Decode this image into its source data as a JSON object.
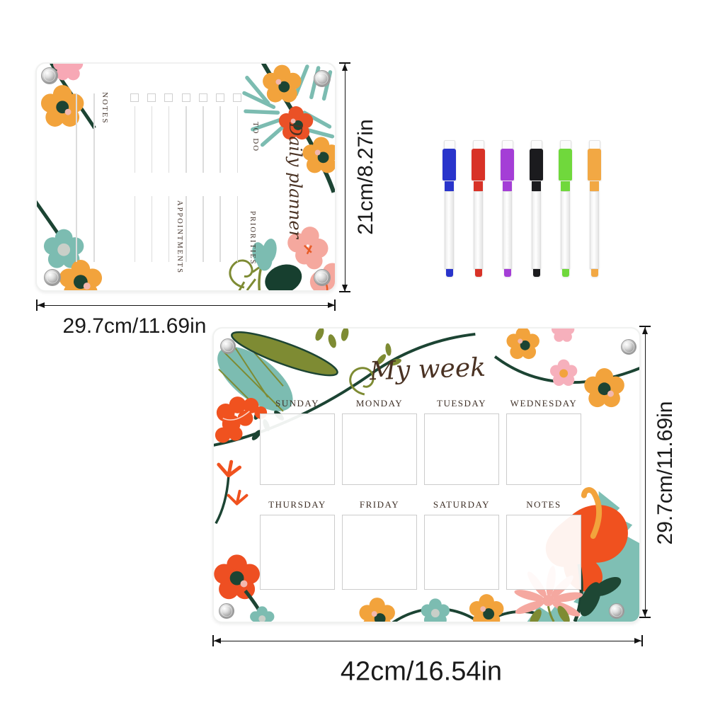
{
  "daily_board": {
    "title": "Daily planner",
    "notes_label": "NOTES",
    "todo_label": "TO DO",
    "appointments_label": "APPOINTMENTS",
    "priorities_label": "PRIORITIES",
    "todo_columns": 7,
    "height_dimension": "21cm/8.27in",
    "width_dimension": "29.7cm/11.69in"
  },
  "week_board": {
    "title": "My week",
    "columns_row1": [
      "SUNDAY",
      "MONDAY",
      "TUESDAY",
      "WEDNESDAY"
    ],
    "columns_row2": [
      "THURSDAY",
      "FRIDAY",
      "SATURDAY",
      "NOTES"
    ],
    "height_dimension": "29.7cm/11.69in",
    "width_dimension": "42cm/16.54in"
  },
  "markers": [
    {
      "name": "blue-marker",
      "color": "#2934cb"
    },
    {
      "name": "red-marker",
      "color": "#d83227"
    },
    {
      "name": "purple-marker",
      "color": "#a43ed6"
    },
    {
      "name": "black-marker",
      "color": "#1b1b1e"
    },
    {
      "name": "green-marker",
      "color": "#70d83c"
    },
    {
      "name": "orange-marker",
      "color": "#f2a844"
    }
  ],
  "palette": {
    "orange": "#F2A33C",
    "red_orange": "#EE5126",
    "pink": "#F5A8A0",
    "blush": "#F6B0BC",
    "teal": "#7CBCB1",
    "dark_green": "#1C4433",
    "olive": "#7E8B33",
    "label_brown": "#41322a",
    "dimension_black": "#141414",
    "line_gray": "#dcdcdc"
  }
}
